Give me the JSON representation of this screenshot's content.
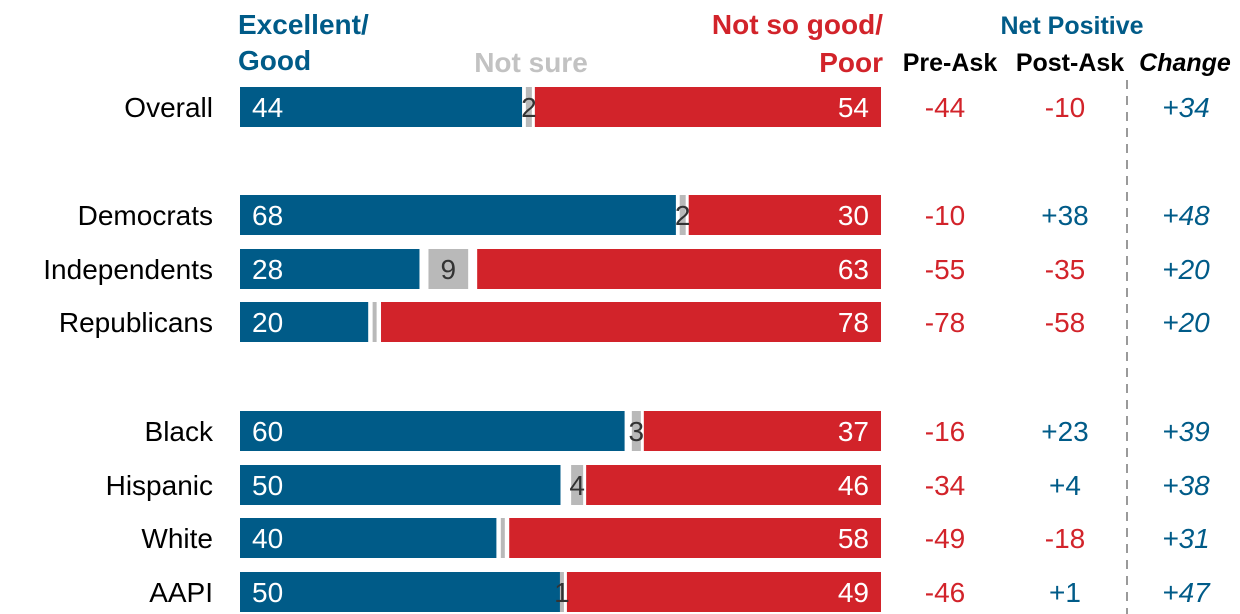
{
  "colors": {
    "positive": "#005b88",
    "negative": "#d2232a",
    "neutral": "#b9b9b9",
    "label": "#000000",
    "divider": "#9a9a9a"
  },
  "headers": {
    "positive_line1": "Excellent/",
    "positive_line2": "Good",
    "neutral": "Not sure",
    "negative_line1": "Not so good/",
    "negative_line2": "Poor",
    "net_positive": "Net Positive",
    "pre_ask": "Pre-Ask",
    "post_ask": "Post-Ask",
    "change": "Change"
  },
  "chart_data": {
    "type": "bar",
    "orientation": "horizontal-stacked-100",
    "categories": [
      "Overall",
      "Democrats",
      "Independents",
      "Republicans",
      "Black",
      "Hispanic",
      "White",
      "AAPI"
    ],
    "groups": [
      [
        "Overall"
      ],
      [
        "Democrats",
        "Independents",
        "Republicans"
      ],
      [
        "Black",
        "Hispanic",
        "White",
        "AAPI"
      ]
    ],
    "series": [
      {
        "name": "Excellent/ Good",
        "values": [
          44,
          68,
          28,
          20,
          60,
          50,
          40,
          50
        ]
      },
      {
        "name": "Not sure",
        "values": [
          2,
          2,
          9,
          null,
          3,
          4,
          null,
          1
        ]
      },
      {
        "name": "Not so good/ Poor",
        "values": [
          54,
          30,
          63,
          78,
          37,
          46,
          58,
          49
        ]
      }
    ],
    "net_positive": {
      "pre_ask": [
        "-44",
        "-10",
        "-55",
        "-78",
        "-16",
        "-34",
        "-49",
        "-46"
      ],
      "post_ask": [
        "-10",
        "+38",
        "-35",
        "-58",
        "+23",
        "+4",
        "-18",
        "+1"
      ],
      "change": [
        "+34",
        "+48",
        "+20",
        "+20",
        "+39",
        "+38",
        "+31",
        "+47"
      ]
    },
    "xlim": [
      0,
      100
    ],
    "legend": "top"
  }
}
